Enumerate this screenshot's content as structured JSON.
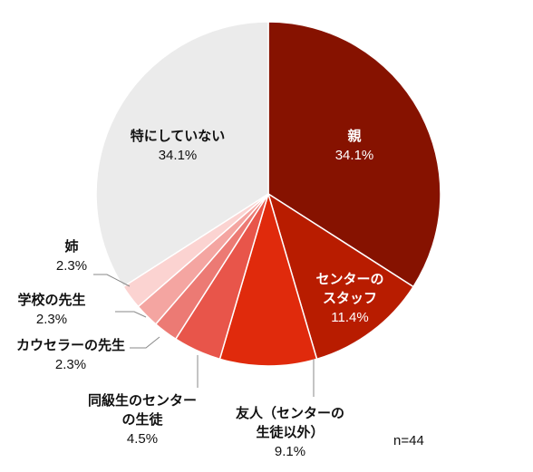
{
  "chart_data": {
    "type": "pie",
    "title": "",
    "note": "n=44",
    "start_angle_deg": 90,
    "direction": "clockwise",
    "slices": [
      {
        "label": [
          "親"
        ],
        "value_text": "34.1%",
        "value": 34.1,
        "color": "#861200",
        "label_color": "#ffffff"
      },
      {
        "label": [
          "センターの",
          "スタッフ"
        ],
        "value_text": "11.4%",
        "value": 11.4,
        "color": "#b81c00",
        "label_color": "#ffffff"
      },
      {
        "label": [
          "友人（センターの",
          "生徒以外）"
        ],
        "value_text": "9.1%",
        "value": 9.1,
        "color": "#e02a0c",
        "label_color": "#111111"
      },
      {
        "label": [
          "同級生のセンター",
          "の生徒"
        ],
        "value_text": "4.5%",
        "value": 4.5,
        "color": "#e8554a",
        "label_color": "#111111"
      },
      {
        "label": [
          "カウセラーの先生"
        ],
        "value_text": "2.3%",
        "value": 2.3,
        "color": "#ec7a74",
        "label_color": "#111111"
      },
      {
        "label": [
          "学校の先生"
        ],
        "value_text": "2.3%",
        "value": 2.3,
        "color": "#f4a5a1",
        "label_color": "#111111"
      },
      {
        "label": [
          "姉"
        ],
        "value_text": "2.3%",
        "value": 2.3,
        "color": "#fbd3d1",
        "label_color": "#111111"
      },
      {
        "label": [
          "特にしていない"
        ],
        "value_text": "34.1%",
        "value": 34.1,
        "color": "#ebebeb",
        "label_color": "#111111"
      }
    ]
  }
}
